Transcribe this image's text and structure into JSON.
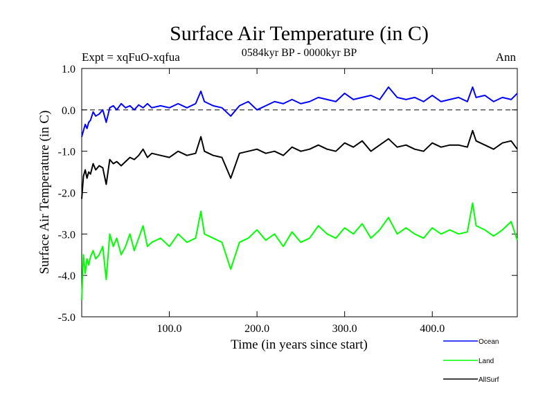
{
  "chart_data": {
    "type": "line",
    "title": "Surface Air Temperature (in C)",
    "subtitle": "0584kyr BP - 0000kyr BP",
    "experiment_label": "Expt = xqFuO-xqfua",
    "season_label": "Ann",
    "xlabel": "Time (in years since start)",
    "ylabel": "Surface Air Temperature (in C)",
    "xlim": [
      0,
      497
    ],
    "ylim": [
      -5.0,
      1.0
    ],
    "x_ticks": [
      100,
      200,
      300,
      400
    ],
    "x_tick_labels": [
      "100.0",
      "200.0",
      "300.0",
      "400.0"
    ],
    "y_ticks": [
      -5,
      -4,
      -3,
      -2,
      -1,
      0,
      1
    ],
    "y_tick_labels": [
      "-5.0",
      "-4.0",
      "-3.0",
      "-2.0",
      "-1.0",
      "0.0",
      "1.0"
    ],
    "reference_line": 0.0,
    "series": [
      {
        "name": "Ocean",
        "color": "#0000ff",
        "x": [
          0,
          2,
          4,
          6,
          8,
          10,
          13,
          16,
          20,
          24,
          28,
          32,
          36,
          40,
          45,
          50,
          55,
          60,
          65,
          70,
          75,
          80,
          90,
          100,
          110,
          120,
          130,
          136,
          140,
          150,
          160,
          170,
          180,
          190,
          200,
          210,
          220,
          230,
          240,
          250,
          260,
          270,
          280,
          290,
          300,
          310,
          320,
          330,
          340,
          350,
          360,
          370,
          380,
          390,
          400,
          410,
          420,
          430,
          440,
          446,
          450,
          460,
          470,
          480,
          490,
          497
        ],
        "values": [
          -0.65,
          -0.5,
          -0.35,
          -0.45,
          -0.3,
          -0.25,
          -0.05,
          -0.15,
          -0.1,
          0.0,
          -0.3,
          0.05,
          0.1,
          0.0,
          0.15,
          0.05,
          0.1,
          0.0,
          0.12,
          0.05,
          0.15,
          0.05,
          0.1,
          0.05,
          0.15,
          0.05,
          0.15,
          0.45,
          0.2,
          0.1,
          0.05,
          -0.15,
          0.1,
          0.2,
          0.0,
          0.1,
          0.2,
          0.15,
          0.25,
          0.15,
          0.2,
          0.3,
          0.25,
          0.2,
          0.4,
          0.25,
          0.3,
          0.35,
          0.25,
          0.55,
          0.3,
          0.25,
          0.3,
          0.2,
          0.35,
          0.2,
          0.25,
          0.3,
          0.2,
          0.55,
          0.3,
          0.35,
          0.2,
          0.3,
          0.25,
          0.4
        ]
      },
      {
        "name": "Land",
        "color": "#00ff00",
        "x": [
          0,
          2,
          4,
          6,
          8,
          10,
          13,
          16,
          20,
          24,
          28,
          32,
          36,
          40,
          45,
          50,
          55,
          60,
          65,
          70,
          75,
          80,
          90,
          100,
          110,
          120,
          130,
          136,
          140,
          150,
          160,
          170,
          180,
          190,
          200,
          210,
          220,
          230,
          240,
          250,
          260,
          270,
          280,
          290,
          300,
          310,
          320,
          330,
          340,
          350,
          360,
          370,
          380,
          390,
          400,
          410,
          420,
          430,
          440,
          446,
          450,
          460,
          470,
          480,
          490,
          497
        ],
        "values": [
          -4.6,
          -3.5,
          -3.95,
          -3.6,
          -3.75,
          -3.55,
          -3.4,
          -3.6,
          -3.5,
          -3.3,
          -4.1,
          -3.0,
          -3.3,
          -3.1,
          -3.5,
          -3.3,
          -3.0,
          -3.4,
          -3.1,
          -2.8,
          -3.3,
          -3.2,
          -3.1,
          -3.3,
          -3.0,
          -3.2,
          -3.1,
          -2.45,
          -3.0,
          -3.1,
          -3.2,
          -3.85,
          -3.2,
          -3.1,
          -2.9,
          -3.15,
          -3.0,
          -3.3,
          -2.95,
          -3.2,
          -3.1,
          -2.8,
          -3.0,
          -3.1,
          -2.85,
          -3.0,
          -2.75,
          -3.1,
          -2.9,
          -2.6,
          -3.0,
          -2.85,
          -3.0,
          -3.1,
          -2.85,
          -3.0,
          -2.9,
          -3.0,
          -2.95,
          -2.25,
          -2.8,
          -2.9,
          -3.05,
          -2.9,
          -2.7,
          -3.15
        ]
      },
      {
        "name": "AllSurf",
        "color": "#000000",
        "x": [
          0,
          2,
          4,
          6,
          8,
          10,
          13,
          16,
          20,
          24,
          28,
          32,
          36,
          40,
          45,
          50,
          55,
          60,
          65,
          70,
          75,
          80,
          90,
          100,
          110,
          120,
          130,
          136,
          140,
          150,
          160,
          170,
          180,
          190,
          200,
          210,
          220,
          230,
          240,
          250,
          260,
          270,
          280,
          290,
          300,
          310,
          320,
          330,
          340,
          350,
          360,
          370,
          380,
          390,
          400,
          410,
          420,
          430,
          440,
          446,
          450,
          460,
          470,
          480,
          490,
          497
        ],
        "values": [
          -2.15,
          -1.6,
          -1.45,
          -1.65,
          -1.5,
          -1.55,
          -1.3,
          -1.45,
          -1.35,
          -1.4,
          -1.8,
          -1.2,
          -1.3,
          -1.25,
          -1.35,
          -1.25,
          -1.15,
          -1.2,
          -1.1,
          -0.95,
          -1.15,
          -1.05,
          -1.1,
          -1.15,
          -1.0,
          -1.1,
          -1.05,
          -0.65,
          -1.0,
          -1.1,
          -1.15,
          -1.65,
          -1.05,
          -1.0,
          -0.95,
          -1.05,
          -1.0,
          -1.1,
          -0.9,
          -1.0,
          -0.95,
          -0.85,
          -0.95,
          -1.0,
          -0.8,
          -0.9,
          -0.75,
          -1.0,
          -0.85,
          -0.7,
          -0.9,
          -0.85,
          -0.95,
          -1.0,
          -0.8,
          -0.9,
          -0.85,
          -0.85,
          -0.9,
          -0.5,
          -0.75,
          -0.85,
          -0.95,
          -0.8,
          -0.75,
          -0.95
        ]
      }
    ],
    "legend_position": "bottom-right",
    "grid": false
  }
}
